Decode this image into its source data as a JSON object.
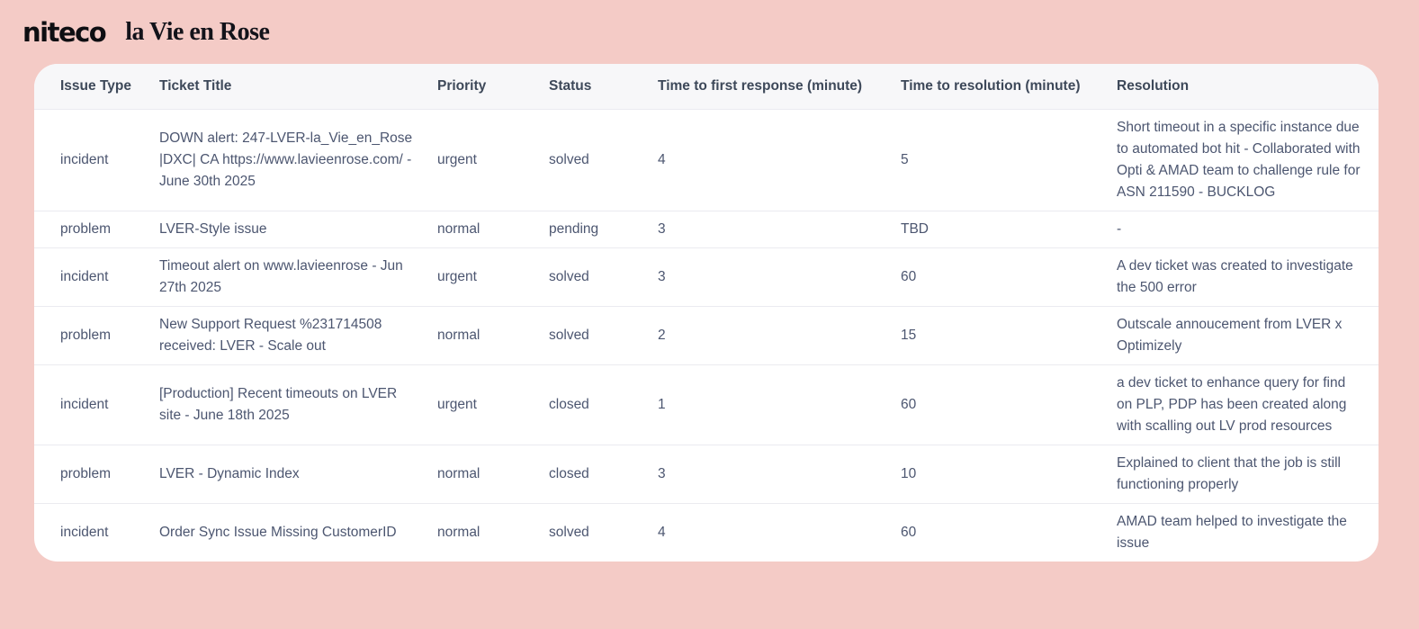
{
  "brand": {
    "logo_primary": "niteco",
    "logo_secondary": "la Vie en Rose"
  },
  "colors": {
    "page_background": "#f4cbc6",
    "card_background": "#ffffff",
    "header_row_background": "#f7f7f9",
    "divider": "#ebebf0",
    "body_text": "#4c5670",
    "header_text": "#3d4859"
  },
  "table": {
    "columns": [
      "Issue Type",
      "Ticket Title",
      "Priority",
      "Status",
      "Time to first response (minute)",
      "Time to resolution (minute)",
      "Resolution"
    ],
    "rows": [
      {
        "issue_type": "incident",
        "ticket_title": "DOWN alert: 247-LVER-la_Vie_en_Rose |DXC| CA https://www.lavieenrose.com/ - June 30th 2025",
        "priority": "urgent",
        "status": "solved",
        "time_first": "4",
        "time_resolution": "5",
        "resolution": "Short timeout in a specific instance due to automated bot hit - Collaborated with Opti & AMAD team to challenge rule for ASN 211590 - BUCKLOG"
      },
      {
        "issue_type": "problem",
        "ticket_title": "LVER-Style issue",
        "priority": "normal",
        "status": "pending",
        "time_first": "3",
        "time_resolution": "TBD",
        "resolution": "-"
      },
      {
        "issue_type": "incident",
        "ticket_title": "Timeout alert on www.lavieenrose - Jun 27th 2025",
        "priority": "urgent",
        "status": "solved",
        "time_first": "3",
        "time_resolution": "60",
        "resolution": "A dev ticket was created to investigate the 500 error"
      },
      {
        "issue_type": "problem",
        "ticket_title": "New Support Request %231714508 received: LVER - Scale out",
        "priority": "normal",
        "status": "solved",
        "time_first": "2",
        "time_resolution": "15",
        "resolution": "Outscale annoucement from LVER x Optimizely"
      },
      {
        "issue_type": "incident",
        "ticket_title": "[Production] Recent timeouts on LVER site - June 18th 2025",
        "priority": "urgent",
        "status": "closed",
        "time_first": "1",
        "time_resolution": "60",
        "resolution": "a dev ticket to enhance query for find on PLP, PDP has been created along with scalling out LV prod resources"
      },
      {
        "issue_type": "problem",
        "ticket_title": "LVER - Dynamic Index",
        "priority": "normal",
        "status": "closed",
        "time_first": "3",
        "time_resolution": "10",
        "resolution": "Explained to client that the job is still functioning properly"
      },
      {
        "issue_type": "incident",
        "ticket_title": "Order Sync Issue Missing CustomerID",
        "priority": "normal",
        "status": "solved",
        "time_first": "4",
        "time_resolution": "60",
        "resolution": "AMAD team helped to investigate the issue"
      }
    ]
  }
}
